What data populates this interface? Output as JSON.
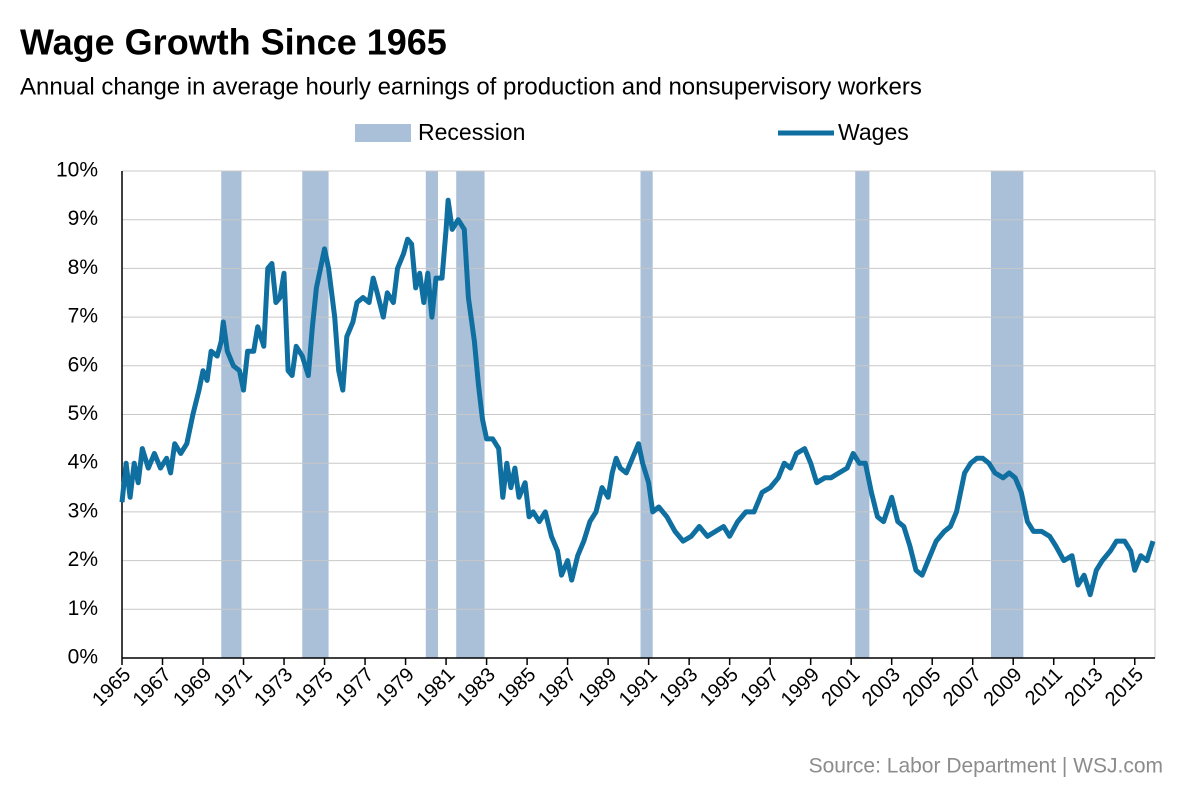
{
  "chart_data": {
    "type": "line",
    "title": "Wage Growth Since 1965",
    "subtitle": "Annual change in average hourly earnings of production and nonsupervisory workers",
    "source": "Source: Labor Department  |  WSJ.com",
    "recession": {
      "name": "Recession",
      "color": "#a9c0d8",
      "spans": [
        [
          1969.9,
          1970.9
        ],
        [
          1973.9,
          1975.2
        ],
        [
          1980.0,
          1980.6
        ],
        [
          1981.5,
          1982.9
        ],
        [
          1990.6,
          1991.2
        ],
        [
          2001.2,
          2001.9
        ],
        [
          2007.9,
          2009.5
        ]
      ]
    },
    "x": [
      1965.0,
      1965.2,
      1965.4,
      1965.6,
      1965.8,
      1966.0,
      1966.3,
      1966.6,
      1966.9,
      1967.2,
      1967.4,
      1967.6,
      1967.9,
      1968.2,
      1968.5,
      1968.8,
      1969.0,
      1969.2,
      1969.4,
      1969.7,
      1969.9,
      1970.0,
      1970.2,
      1970.5,
      1970.8,
      1971.0,
      1971.2,
      1971.5,
      1971.7,
      1972.0,
      1972.2,
      1972.4,
      1972.6,
      1972.8,
      1973.0,
      1973.2,
      1973.4,
      1973.6,
      1973.9,
      1974.2,
      1974.4,
      1974.6,
      1974.8,
      1975.0,
      1975.2,
      1975.5,
      1975.7,
      1975.9,
      1976.1,
      1976.4,
      1976.6,
      1976.9,
      1977.2,
      1977.4,
      1977.6,
      1977.9,
      1978.1,
      1978.4,
      1978.6,
      1978.9,
      1979.1,
      1979.3,
      1979.5,
      1979.7,
      1979.9,
      1980.1,
      1980.3,
      1980.5,
      1980.8,
      1981.0,
      1981.1,
      1981.3,
      1981.6,
      1981.9,
      1982.1,
      1982.4,
      1982.6,
      1982.8,
      1983.0,
      1983.3,
      1983.6,
      1983.8,
      1984.0,
      1984.2,
      1984.4,
      1984.6,
      1984.9,
      1985.1,
      1985.3,
      1985.6,
      1985.9,
      1986.2,
      1986.5,
      1986.7,
      1987.0,
      1987.2,
      1987.5,
      1987.8,
      1988.1,
      1988.4,
      1988.7,
      1989.0,
      1989.2,
      1989.4,
      1989.6,
      1989.9,
      1990.2,
      1990.5,
      1990.7,
      1991.0,
      1991.2,
      1991.5,
      1991.9,
      1992.3,
      1992.7,
      1993.1,
      1993.5,
      1993.9,
      1994.3,
      1994.7,
      1995.0,
      1995.4,
      1995.8,
      1996.2,
      1996.6,
      1997.0,
      1997.4,
      1997.7,
      1998.0,
      1998.3,
      1998.7,
      1999.0,
      1999.3,
      1999.7,
      2000.0,
      2000.4,
      2000.8,
      2001.1,
      2001.4,
      2001.7,
      2002.0,
      2002.3,
      2002.6,
      2003.0,
      2003.3,
      2003.6,
      2003.9,
      2004.2,
      2004.5,
      2004.8,
      2005.2,
      2005.6,
      2005.9,
      2006.2,
      2006.6,
      2006.9,
      2007.2,
      2007.5,
      2007.8,
      2008.1,
      2008.5,
      2008.8,
      2009.1,
      2009.4,
      2009.7,
      2010.0,
      2010.4,
      2010.8,
      2011.1,
      2011.5,
      2011.9,
      2012.2,
      2012.5,
      2012.8,
      2013.1,
      2013.4,
      2013.8,
      2014.1,
      2014.5,
      2014.8,
      2015.0,
      2015.3,
      2015.6,
      2015.9
    ],
    "series": [
      {
        "name": "Wages",
        "color": "#0f6fa0",
        "values": [
          3.2,
          4.0,
          3.3,
          4.0,
          3.6,
          4.3,
          3.9,
          4.2,
          3.9,
          4.1,
          3.8,
          4.4,
          4.2,
          4.4,
          5.0,
          5.5,
          5.9,
          5.7,
          6.3,
          6.2,
          6.5,
          6.9,
          6.3,
          6.0,
          5.9,
          5.5,
          6.3,
          6.3,
          6.8,
          6.4,
          8.0,
          8.1,
          7.3,
          7.4,
          7.9,
          5.9,
          5.8,
          6.4,
          6.2,
          5.8,
          6.8,
          7.6,
          8.0,
          8.4,
          8.0,
          7.0,
          5.9,
          5.5,
          6.6,
          6.9,
          7.3,
          7.4,
          7.3,
          7.8,
          7.5,
          7.0,
          7.5,
          7.3,
          8.0,
          8.3,
          8.6,
          8.5,
          7.6,
          7.9,
          7.3,
          7.9,
          7.0,
          7.8,
          7.8,
          8.8,
          9.4,
          8.8,
          9.0,
          8.8,
          7.4,
          6.5,
          5.6,
          4.9,
          4.5,
          4.5,
          4.3,
          3.3,
          4.0,
          3.5,
          3.9,
          3.3,
          3.6,
          2.9,
          3.0,
          2.8,
          3.0,
          2.5,
          2.2,
          1.7,
          2.0,
          1.6,
          2.1,
          2.4,
          2.8,
          3.0,
          3.5,
          3.3,
          3.8,
          4.1,
          3.9,
          3.8,
          4.1,
          4.4,
          4.0,
          3.6,
          3.0,
          3.1,
          2.9,
          2.6,
          2.4,
          2.5,
          2.7,
          2.5,
          2.6,
          2.7,
          2.5,
          2.8,
          3.0,
          3.0,
          3.4,
          3.5,
          3.7,
          4.0,
          3.9,
          4.2,
          4.3,
          4.0,
          3.6,
          3.7,
          3.7,
          3.8,
          3.9,
          4.2,
          4.0,
          4.0,
          3.4,
          2.9,
          2.8,
          3.3,
          2.8,
          2.7,
          2.3,
          1.8,
          1.7,
          2.0,
          2.4,
          2.6,
          2.7,
          3.0,
          3.8,
          4.0,
          4.1,
          4.1,
          4.0,
          3.8,
          3.7,
          3.8,
          3.7,
          3.4,
          2.8,
          2.6,
          2.6,
          2.5,
          2.3,
          2.0,
          2.1,
          1.5,
          1.7,
          1.3,
          1.8,
          2.0,
          2.2,
          2.4,
          2.4,
          2.2,
          1.8,
          2.1,
          2.0,
          2.4
        ]
      }
    ],
    "xlim": [
      1965,
      2016
    ],
    "xticks": [
      1965,
      1967,
      1969,
      1971,
      1973,
      1975,
      1977,
      1979,
      1981,
      1983,
      1985,
      1987,
      1989,
      1991,
      1993,
      1995,
      1997,
      1999,
      2001,
      2003,
      2005,
      2007,
      2009,
      2011,
      2013,
      2015
    ],
    "ylim": [
      0,
      10
    ],
    "yticks": [
      {
        "value": 0,
        "label": "0%"
      },
      {
        "value": 1,
        "label": "1%"
      },
      {
        "value": 2,
        "label": "2%"
      },
      {
        "value": 3,
        "label": "3%"
      },
      {
        "value": 4,
        "label": "4%"
      },
      {
        "value": 5,
        "label": "5%"
      },
      {
        "value": 6,
        "label": "6%"
      },
      {
        "value": 7,
        "label": "7%"
      },
      {
        "value": 8,
        "label": "8%"
      },
      {
        "value": 9,
        "label": "9%"
      },
      {
        "value": 10,
        "label": "10%"
      }
    ],
    "grid": true
  }
}
